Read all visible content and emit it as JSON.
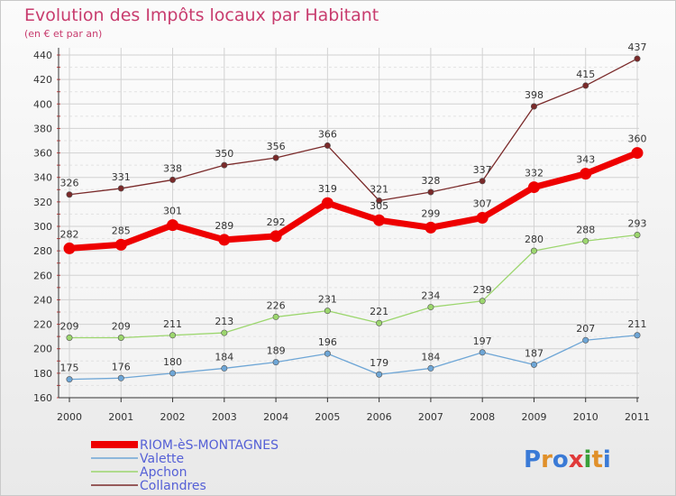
{
  "chart_data": {
    "type": "line",
    "title": "Evolution des Impôts locaux par Habitant",
    "subtitle": "(en € et par an)",
    "x": [
      "2000",
      "2001",
      "2002",
      "2003",
      "2004",
      "2005",
      "2006",
      "2007",
      "2008",
      "2009",
      "2010",
      "2011"
    ],
    "ylim": [
      160,
      440
    ],
    "yticks": [
      160,
      180,
      200,
      220,
      240,
      260,
      280,
      300,
      320,
      340,
      360,
      380,
      400,
      420,
      440
    ],
    "grid": true,
    "legend_position": "bottom-left",
    "series": [
      {
        "name": "Collandres",
        "color": "#7a2a2a",
        "values": [
          326,
          331,
          338,
          350,
          356,
          366,
          321,
          328,
          337,
          398,
          415,
          437
        ]
      },
      {
        "name": "Apchon",
        "color": "#9cd66e",
        "values": [
          209,
          209,
          211,
          213,
          226,
          231,
          221,
          234,
          239,
          280,
          288,
          293
        ]
      },
      {
        "name": "Valette",
        "color": "#6ea6d6",
        "values": [
          175,
          176,
          180,
          184,
          189,
          196,
          179,
          184,
          197,
          187,
          207,
          211
        ]
      },
      {
        "name": "RIOM-èS-MONTAGNES",
        "color": "#ee0000",
        "values": [
          282,
          285,
          301,
          289,
          292,
          319,
          305,
          299,
          307,
          332,
          343,
          360
        ]
      }
    ],
    "legend_order": [
      "RIOM-èS-MONTAGNES",
      "Valette",
      "Apchon",
      "Collandres"
    ]
  },
  "logo": {
    "text": "Proxiti",
    "colors": [
      "#3a7ad6",
      "#e0902a",
      "#3a7ad6",
      "#e03a3a",
      "#3aa03a",
      "#e0902a",
      "#3a7ad6"
    ]
  }
}
